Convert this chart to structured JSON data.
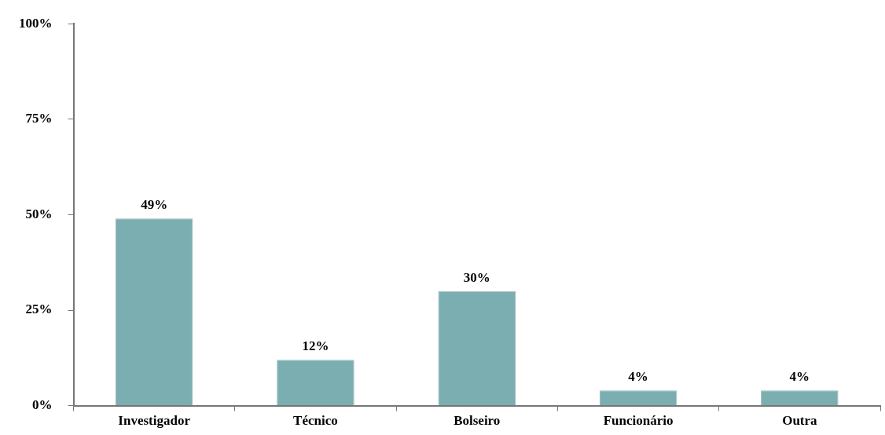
{
  "chart_data": {
    "type": "bar",
    "categories": [
      "Investigador",
      "Técnico",
      "Bolseiro",
      "Funcionário",
      "Outra"
    ],
    "values": [
      49,
      12,
      30,
      4,
      4
    ],
    "color": "#7aaeb0",
    "value_labels": [
      "49%",
      "12%",
      "30%",
      "4%",
      "4%"
    ],
    "ylim": [
      0,
      100
    ],
    "yticks": [
      {
        "value": 0,
        "label": "0%"
      },
      {
        "value": 25,
        "label": "25%"
      },
      {
        "value": 50,
        "label": "50%"
      },
      {
        "value": 75,
        "label": "75%"
      },
      {
        "value": 100,
        "label": "100%"
      }
    ],
    "grid": false,
    "legend": false
  }
}
